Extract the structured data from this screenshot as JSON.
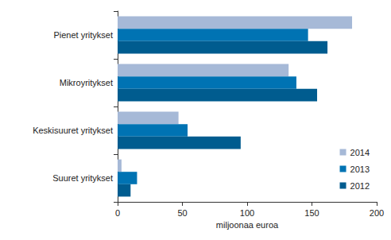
{
  "chart_data": {
    "type": "bar",
    "orientation": "horizontal",
    "categories": [
      "Pienet yritykset",
      "Mikroyritykset",
      "Keskisuuret yritykset",
      "Suuret yritykset"
    ],
    "series": [
      {
        "name": "2014",
        "color": "#a6b9d7",
        "values": [
          181,
          132,
          47,
          3
        ]
      },
      {
        "name": "2013",
        "color": "#0073b3",
        "values": [
          147,
          138,
          54,
          15
        ]
      },
      {
        "name": "2012",
        "color": "#005c8f",
        "values": [
          162,
          154,
          95,
          10
        ]
      }
    ],
    "xlabel": "miljoonaa euroa",
    "xlim": [
      0,
      200
    ],
    "xticks": [
      0,
      50,
      100,
      150,
      200
    ],
    "grid": false,
    "legend": "lower right"
  }
}
